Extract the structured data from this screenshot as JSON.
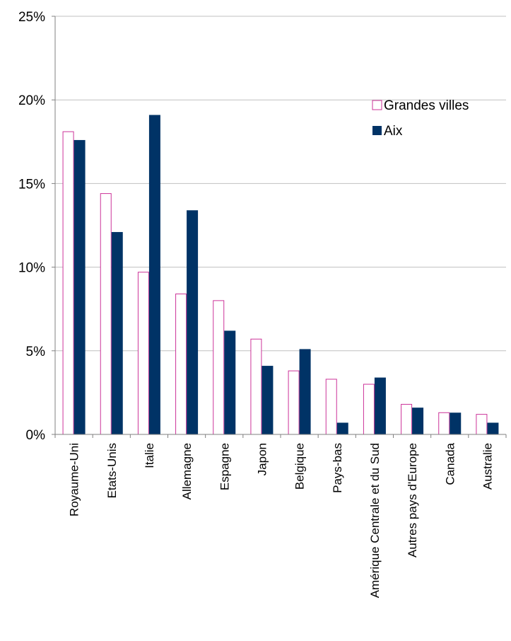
{
  "chart_data": {
    "type": "bar",
    "categories": [
      "Royaume-Uni",
      "Etats-Unis",
      "Italie",
      "Allemagne",
      "Espagne",
      "Japon",
      "Belgique",
      "Pays-bas",
      "Amérique Centrale et du Sud",
      "Autres pays d'Europe",
      "Canada",
      "Australie"
    ],
    "series": [
      {
        "name": "Grandes villes",
        "values": [
          18.1,
          14.4,
          9.7,
          8.4,
          8.0,
          5.7,
          3.8,
          3.3,
          3.0,
          1.8,
          1.3,
          1.2
        ]
      },
      {
        "name": "Aix",
        "values": [
          17.6,
          12.1,
          19.1,
          13.4,
          6.2,
          4.1,
          5.1,
          0.7,
          3.4,
          1.6,
          1.3,
          0.7
        ]
      }
    ],
    "yticks": [
      "0%",
      "5%",
      "10%",
      "15%",
      "20%",
      "25%"
    ],
    "ylim": [
      0,
      25
    ],
    "grid": true,
    "legend": "right",
    "colors": {
      "grandes_villes_stroke": "#cc3399",
      "grandes_villes_fill": "#ffffff",
      "aix_fill": "#003366",
      "grid": "#c0c0c0",
      "axis": "#808080"
    }
  }
}
